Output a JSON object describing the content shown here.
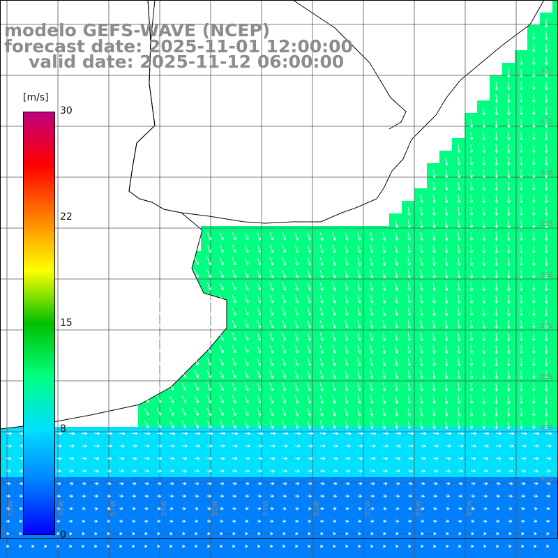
{
  "title": {
    "line1": "modelo GEFS-WAVE (NCEP)",
    "line2": "forecast date: 2025-11-01 12:00:00",
    "line3": "valid date: 2025-11-12 06:00:00"
  },
  "colorbar": {
    "unit": "[m/s]",
    "ticks": [
      "30",
      "22",
      "15",
      "8",
      "0"
    ],
    "min": 0,
    "max": 30,
    "stops": [
      "#0000ff",
      "#0080ff",
      "#00e0ff",
      "#00ff80",
      "#00c000",
      "#ffff00",
      "#ff8000",
      "#ff0000",
      "#c00080"
    ]
  },
  "map": {
    "land_color": "#ffffff",
    "grid_color": "#555555",
    "coast_color": "#000000",
    "arrow_color": "#ffffff",
    "lat_labels": [
      "32S",
      "33S",
      "34S",
      "35S",
      "36S",
      "37S",
      "38S",
      "39S",
      "40S"
    ],
    "lon_labels": [
      "59W",
      "58W",
      "57W",
      "56W",
      "55W",
      "54W",
      "53W",
      "52W",
      "51W",
      "50W"
    ]
  }
}
